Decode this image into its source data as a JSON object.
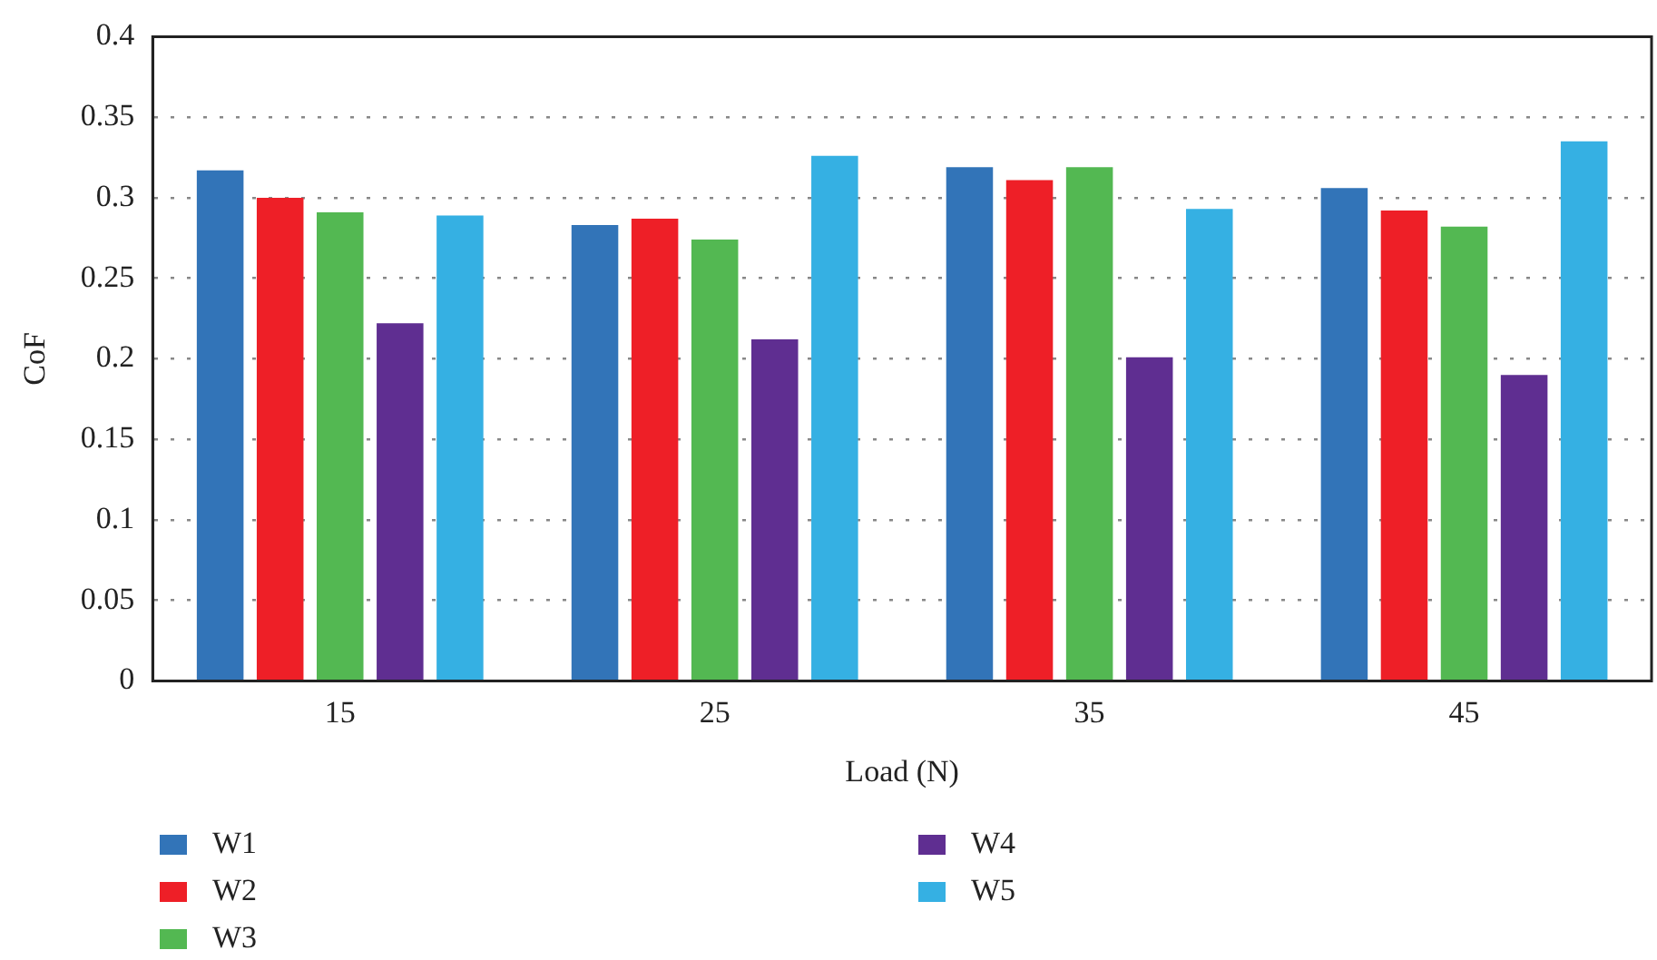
{
  "chart_data": {
    "type": "bar",
    "xlabel": "Load (N)",
    "ylabel": "CoF",
    "categories": [
      "15",
      "25",
      "35",
      "45"
    ],
    "series": [
      {
        "name": "W1",
        "color": "#3274b8",
        "values": [
          0.317,
          0.283,
          0.319,
          0.306
        ]
      },
      {
        "name": "W2",
        "color": "#ee1f27",
        "values": [
          0.3,
          0.287,
          0.311,
          0.292
        ]
      },
      {
        "name": "W3",
        "color": "#53b852",
        "values": [
          0.291,
          0.274,
          0.319,
          0.282
        ]
      },
      {
        "name": "W4",
        "color": "#5f2e91",
        "values": [
          0.222,
          0.212,
          0.201,
          0.19
        ]
      },
      {
        "name": "W5",
        "color": "#35b0e3",
        "values": [
          0.289,
          0.326,
          0.293,
          0.335
        ]
      }
    ],
    "ylim": [
      0,
      0.4
    ],
    "yticks": [
      0,
      0.05,
      0.1,
      0.15,
      0.2,
      0.25,
      0.3,
      0.35,
      0.4
    ],
    "grid": "y",
    "legend": "bottom"
  }
}
